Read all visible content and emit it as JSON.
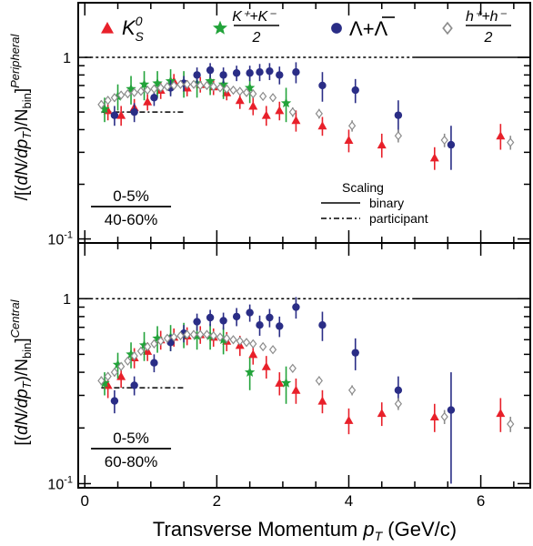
{
  "chart_data": [
    {
      "type": "scatter",
      "panel": "top",
      "yscale": "log",
      "xlim": [
        -0.1,
        6.75
      ],
      "ylim": [
        0.095,
        2.0
      ],
      "y_ticks": [
        {
          "value": 0.1,
          "base": "10",
          "exp": "-1"
        },
        {
          "value": 1,
          "label": "1"
        }
      ],
      "ylabel": {
        "prefix": "[(",
        "num": "dN/dp",
        "sub": "T",
        "mid": ")/N",
        "nsub": "bin",
        "close": "]",
        "sup": "Peripheral",
        "prefix_slash": "/"
      },
      "ratio_label": {
        "num": "0-5%",
        "den": "40-60%"
      },
      "reference_lines": [
        {
          "style": "dashed",
          "y": 1.0,
          "x": [
            0,
            5.0
          ]
        },
        {
          "style": "solid",
          "y": 1.0,
          "x": [
            5.0,
            6.75
          ]
        },
        {
          "style": "dashdot",
          "y": 0.5,
          "x": [
            0.25,
            1.5
          ]
        }
      ],
      "series": [
        {
          "name": "K0S",
          "marker": "triangle",
          "color": "#e8202a",
          "points": [
            [
              0.35,
              0.51,
              0.06
            ],
            [
              0.55,
              0.48,
              0.06
            ],
            [
              0.75,
              0.53,
              0.06
            ],
            [
              0.95,
              0.57,
              0.06
            ],
            [
              1.15,
              0.66,
              0.07
            ],
            [
              1.35,
              0.74,
              0.07
            ],
            [
              1.55,
              0.68,
              0.07
            ],
            [
              1.75,
              0.71,
              0.07
            ],
            [
              1.95,
              0.69,
              0.07
            ],
            [
              2.15,
              0.64,
              0.06
            ],
            [
              2.35,
              0.58,
              0.06
            ],
            [
              2.55,
              0.54,
              0.06
            ],
            [
              2.75,
              0.48,
              0.06
            ],
            [
              2.95,
              0.51,
              0.06
            ],
            [
              3.2,
              0.45,
              0.06
            ],
            [
              3.6,
              0.42,
              0.05
            ],
            [
              4.0,
              0.35,
              0.05
            ],
            [
              4.5,
              0.33,
              0.05
            ],
            [
              5.3,
              0.28,
              0.04
            ],
            [
              6.3,
              0.37,
              0.06
            ]
          ]
        },
        {
          "name": "K±",
          "marker": "star",
          "color": "#22a33a",
          "points": [
            [
              0.3,
              0.52,
              0.08
            ],
            [
              0.5,
              0.61,
              0.1
            ],
            [
              0.7,
              0.67,
              0.12
            ],
            [
              0.9,
              0.71,
              0.13
            ],
            [
              1.1,
              0.72,
              0.12
            ],
            [
              1.3,
              0.74,
              0.12
            ],
            [
              1.5,
              0.72,
              0.12
            ],
            [
              1.7,
              0.72,
              0.12
            ],
            [
              1.9,
              0.74,
              0.12
            ],
            [
              2.1,
              0.71,
              0.12
            ],
            [
              2.5,
              0.68,
              0.12
            ],
            [
              3.05,
              0.56,
              0.12
            ]
          ]
        },
        {
          "name": "Λ+Λbar",
          "marker": "circle",
          "color": "#2a2d86",
          "points": [
            [
              0.45,
              0.48,
              0.06
            ],
            [
              0.75,
              0.5,
              0.06
            ],
            [
              1.05,
              0.6,
              0.06
            ],
            [
              1.3,
              0.68,
              0.07
            ],
            [
              1.5,
              0.72,
              0.07
            ],
            [
              1.7,
              0.8,
              0.08
            ],
            [
              1.9,
              0.85,
              0.08
            ],
            [
              2.1,
              0.8,
              0.08
            ],
            [
              2.3,
              0.82,
              0.08
            ],
            [
              2.5,
              0.82,
              0.08
            ],
            [
              2.65,
              0.83,
              0.09
            ],
            [
              2.8,
              0.84,
              0.09
            ],
            [
              2.95,
              0.8,
              0.09
            ],
            [
              3.2,
              0.83,
              0.11
            ],
            [
              3.6,
              0.7,
              0.13
            ],
            [
              4.1,
              0.66,
              0.1
            ],
            [
              4.75,
              0.48,
              0.1
            ],
            [
              5.55,
              0.33,
              0.09
            ]
          ]
        },
        {
          "name": "h±",
          "marker": "diamond",
          "color": "#8c8c8c",
          "points": [
            [
              0.25,
              0.55,
              0.03
            ],
            [
              0.35,
              0.58,
              0.03
            ],
            [
              0.45,
              0.6,
              0.03
            ],
            [
              0.55,
              0.62,
              0.03
            ],
            [
              0.65,
              0.63,
              0.03
            ],
            [
              0.75,
              0.64,
              0.03
            ],
            [
              0.85,
              0.65,
              0.03
            ],
            [
              0.95,
              0.66,
              0.03
            ],
            [
              1.05,
              0.67,
              0.03
            ],
            [
              1.15,
              0.68,
              0.03
            ],
            [
              1.25,
              0.69,
              0.03
            ],
            [
              1.35,
              0.7,
              0.03
            ],
            [
              1.45,
              0.71,
              0.03
            ],
            [
              1.55,
              0.71,
              0.03
            ],
            [
              1.65,
              0.71,
              0.03
            ],
            [
              1.75,
              0.7,
              0.03
            ],
            [
              1.85,
              0.7,
              0.03
            ],
            [
              1.95,
              0.69,
              0.03
            ],
            [
              2.05,
              0.68,
              0.03
            ],
            [
              2.15,
              0.67,
              0.03
            ],
            [
              2.25,
              0.66,
              0.03
            ],
            [
              2.35,
              0.65,
              0.03
            ],
            [
              2.45,
              0.64,
              0.03
            ],
            [
              2.55,
              0.63,
              0.03
            ],
            [
              2.7,
              0.61,
              0.03
            ],
            [
              2.85,
              0.6,
              0.03
            ],
            [
              3.15,
              0.5,
              0.03
            ],
            [
              3.55,
              0.49,
              0.03
            ],
            [
              4.05,
              0.42,
              0.03
            ],
            [
              4.75,
              0.37,
              0.03
            ],
            [
              5.45,
              0.35,
              0.03
            ],
            [
              6.45,
              0.34,
              0.03
            ]
          ]
        }
      ]
    },
    {
      "type": "scatter",
      "panel": "bottom",
      "yscale": "log",
      "xlim": [
        -0.1,
        6.75
      ],
      "ylim": [
        0.095,
        2.0
      ],
      "y_ticks": [
        {
          "value": 0.1,
          "base": "10",
          "exp": "-1"
        },
        {
          "value": 1,
          "label": "1"
        }
      ],
      "ylabel": {
        "prefix": "[(",
        "num": "dN/dp",
        "sub": "T",
        "mid": ")/N",
        "nsub": "bin",
        "close": "]",
        "sup": "Central"
      },
      "ratio_label": {
        "num": "0-5%",
        "den": "60-80%"
      },
      "reference_lines": [
        {
          "style": "dashed",
          "y": 1.0,
          "x": [
            0,
            5.0
          ]
        },
        {
          "style": "solid",
          "y": 1.0,
          "x": [
            5.0,
            6.75
          ]
        },
        {
          "style": "dashdot",
          "y": 0.33,
          "x": [
            0.25,
            1.5
          ]
        }
      ],
      "series": [
        {
          "name": "K0S",
          "marker": "triangle",
          "color": "#e8202a",
          "points": [
            [
              0.35,
              0.34,
              0.05
            ],
            [
              0.55,
              0.38,
              0.05
            ],
            [
              0.75,
              0.48,
              0.06
            ],
            [
              0.95,
              0.52,
              0.06
            ],
            [
              1.15,
              0.6,
              0.07
            ],
            [
              1.35,
              0.62,
              0.07
            ],
            [
              1.55,
              0.63,
              0.07
            ],
            [
              1.75,
              0.64,
              0.07
            ],
            [
              1.95,
              0.62,
              0.07
            ],
            [
              2.15,
              0.59,
              0.07
            ],
            [
              2.35,
              0.56,
              0.07
            ],
            [
              2.55,
              0.5,
              0.06
            ],
            [
              2.75,
              0.43,
              0.06
            ],
            [
              2.95,
              0.35,
              0.05
            ],
            [
              3.2,
              0.32,
              0.05
            ],
            [
              3.6,
              0.28,
              0.04
            ],
            [
              4.0,
              0.22,
              0.035
            ],
            [
              4.5,
              0.24,
              0.035
            ],
            [
              5.3,
              0.23,
              0.04
            ],
            [
              6.3,
              0.24,
              0.05
            ]
          ]
        },
        {
          "name": "K±",
          "marker": "star",
          "color": "#22a33a",
          "points": [
            [
              0.3,
              0.35,
              0.05
            ],
            [
              0.5,
              0.44,
              0.07
            ],
            [
              0.7,
              0.5,
              0.08
            ],
            [
              0.9,
              0.56,
              0.1
            ],
            [
              1.1,
              0.61,
              0.1
            ],
            [
              1.3,
              0.62,
              0.1
            ],
            [
              1.5,
              0.64,
              0.1
            ],
            [
              1.7,
              0.63,
              0.1
            ],
            [
              1.9,
              0.63,
              0.1
            ],
            [
              2.1,
              0.6,
              0.1
            ],
            [
              2.5,
              0.4,
              0.08
            ],
            [
              3.05,
              0.35,
              0.08
            ]
          ]
        },
        {
          "name": "Λ+Λbar",
          "marker": "circle",
          "color": "#2a2d86",
          "points": [
            [
              0.45,
              0.28,
              0.04
            ],
            [
              0.75,
              0.34,
              0.04
            ],
            [
              1.05,
              0.45,
              0.05
            ],
            [
              1.3,
              0.58,
              0.06
            ],
            [
              1.5,
              0.65,
              0.07
            ],
            [
              1.7,
              0.75,
              0.08
            ],
            [
              1.9,
              0.79,
              0.08
            ],
            [
              2.1,
              0.76,
              0.08
            ],
            [
              2.3,
              0.8,
              0.09
            ],
            [
              2.5,
              0.84,
              0.09
            ],
            [
              2.65,
              0.72,
              0.09
            ],
            [
              2.8,
              0.79,
              0.09
            ],
            [
              2.95,
              0.71,
              0.09
            ],
            [
              3.2,
              0.9,
              0.12
            ],
            [
              3.6,
              0.72,
              0.13
            ],
            [
              4.1,
              0.51,
              0.1
            ],
            [
              4.75,
              0.32,
              0.06
            ],
            [
              5.55,
              0.25,
              0.15
            ]
          ]
        },
        {
          "name": "h±",
          "marker": "diamond",
          "color": "#8c8c8c",
          "points": [
            [
              0.25,
              0.36,
              0.02
            ],
            [
              0.35,
              0.38,
              0.02
            ],
            [
              0.45,
              0.4,
              0.02
            ],
            [
              0.55,
              0.43,
              0.02
            ],
            [
              0.65,
              0.46,
              0.02
            ],
            [
              0.75,
              0.49,
              0.02
            ],
            [
              0.85,
              0.52,
              0.02
            ],
            [
              0.95,
              0.55,
              0.02
            ],
            [
              1.05,
              0.57,
              0.02
            ],
            [
              1.15,
              0.59,
              0.02
            ],
            [
              1.25,
              0.61,
              0.02
            ],
            [
              1.35,
              0.62,
              0.02
            ],
            [
              1.45,
              0.63,
              0.02
            ],
            [
              1.55,
              0.64,
              0.02
            ],
            [
              1.65,
              0.64,
              0.02
            ],
            [
              1.75,
              0.64,
              0.02
            ],
            [
              1.85,
              0.64,
              0.02
            ],
            [
              1.95,
              0.63,
              0.02
            ],
            [
              2.05,
              0.62,
              0.02
            ],
            [
              2.15,
              0.61,
              0.02
            ],
            [
              2.25,
              0.6,
              0.02
            ],
            [
              2.35,
              0.59,
              0.02
            ],
            [
              2.45,
              0.58,
              0.02
            ],
            [
              2.55,
              0.57,
              0.02
            ],
            [
              2.7,
              0.55,
              0.02
            ],
            [
              2.85,
              0.53,
              0.02
            ],
            [
              3.15,
              0.42,
              0.02
            ],
            [
              3.55,
              0.36,
              0.02
            ],
            [
              4.05,
              0.32,
              0.02
            ],
            [
              4.75,
              0.27,
              0.02
            ],
            [
              5.45,
              0.23,
              0.02
            ],
            [
              6.45,
              0.21,
              0.02
            ]
          ]
        }
      ]
    }
  ],
  "x_axis": {
    "ticks": [
      {
        "value": 0,
        "label": "0"
      },
      {
        "value": 2,
        "label": "2"
      },
      {
        "value": 4,
        "label": "4"
      },
      {
        "value": 6,
        "label": "6"
      }
    ],
    "label": {
      "text": "Transverse Momentum ",
      "var": "p",
      "sub": "T",
      "unit": " (GeV/c)"
    }
  },
  "legend": {
    "placement": "top",
    "entries": [
      {
        "name": "K0S",
        "text": "K",
        "sub": "S",
        "sup": "0"
      },
      {
        "name": "K±",
        "num": "K⁺+K⁻",
        "den": "2"
      },
      {
        "name": "Λ+Λbar",
        "text": "Λ+Λ"
      },
      {
        "name": "h±",
        "num": "h⁺+h⁻",
        "den": "2"
      }
    ]
  },
  "scaling_legend": {
    "title": "Scaling",
    "entries": [
      {
        "style": "solid",
        "label": "binary"
      },
      {
        "style": "dashdot",
        "label": "participant"
      }
    ]
  }
}
